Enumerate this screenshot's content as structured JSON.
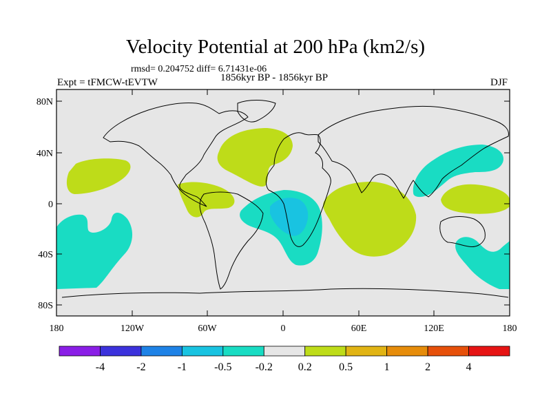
{
  "header": {
    "title": "Velocity Potential at 200 hPa (km2/s)",
    "stats": "rmsd= 0.204752 diff= 6.71431e-06",
    "period": "1856kyr BP - 1856kyr BP",
    "experiment": "Expt = tFMCW-tEVTW",
    "season": "DJF"
  },
  "map": {
    "background_color": "#e6e6e6",
    "lat_labels": [
      "80N",
      "40N",
      "0",
      "40S",
      "80S"
    ],
    "lon_labels": [
      "180",
      "120W",
      "60W",
      "0",
      "60E",
      "120E",
      "180"
    ],
    "anomaly_regions": [
      {
        "name": "north-pacific-positive",
        "sign": "positive"
      },
      {
        "name": "south-pacific-negative",
        "sign": "negative"
      },
      {
        "name": "north-atlantic-positive",
        "sign": "positive"
      },
      {
        "name": "central-america-positive",
        "sign": "positive"
      },
      {
        "name": "south-atlantic-negative",
        "sign": "negative"
      },
      {
        "name": "south-atlantic-strong-negative",
        "sign": "negative"
      },
      {
        "name": "indian-ocean-positive",
        "sign": "positive"
      },
      {
        "name": "west-pacific-negative",
        "sign": "negative"
      },
      {
        "name": "maritime-positive",
        "sign": "positive"
      },
      {
        "name": "southwest-pacific-negative",
        "sign": "negative"
      }
    ]
  },
  "colorbar": {
    "labels": [
      "-4",
      "-2",
      "-1",
      "-0.5",
      "-0.2",
      "0.2",
      "0.5",
      "1",
      "2",
      "4"
    ],
    "colors": [
      "#8a1ee6",
      "#3c32dc",
      "#1e82e6",
      "#19c3e1",
      "#19dcc3",
      "#e6e6e6",
      "#bedc19",
      "#e1b414",
      "#e68c0a",
      "#e6500a",
      "#e61414"
    ]
  }
}
